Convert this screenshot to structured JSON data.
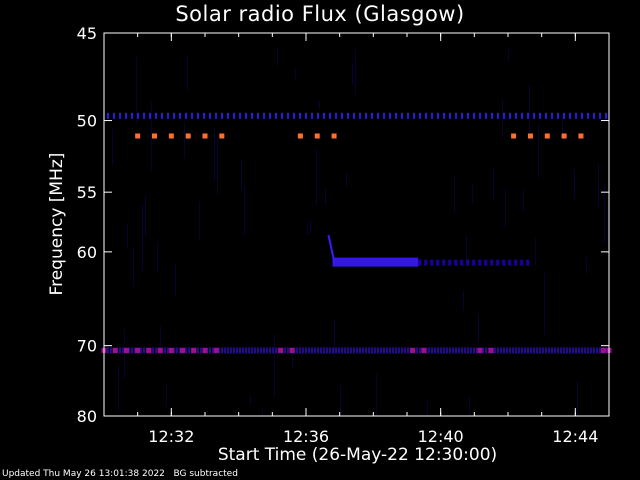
{
  "chart_data": {
    "type": "heatmap",
    "title": "Solar radio Flux (Glasgow)",
    "xlabel": "Start Time (26-May-22 12:30:00)",
    "ylabel": "Frequency [MHz]",
    "x_ticks": [
      "12:32",
      "12:36",
      "12:40",
      "12:44"
    ],
    "y_ticks": [
      45,
      50,
      55,
      60,
      70,
      80
    ],
    "xlim": [
      "12:30:00",
      "12:45:00"
    ],
    "ylim": [
      80,
      45
    ],
    "y_scale": "reciprocal",
    "colormap": [
      "#000000",
      "#1a00a0",
      "#3a1aff",
      "#a0108a",
      "#ff3030",
      "#ff7030"
    ],
    "persistent_bands_mhz": [
      49.7,
      70.6
    ],
    "intermittent_bursts": [
      {
        "freq_mhz": 51.0,
        "start": "12:31:00",
        "end": "12:33:30",
        "spacing_s": 30,
        "level": "high"
      },
      {
        "freq_mhz": 51.0,
        "start": "12:35:50",
        "end": "12:36:50",
        "spacing_s": 30,
        "level": "high"
      },
      {
        "freq_mhz": 51.0,
        "start": "12:42:10",
        "end": "12:44:10",
        "spacing_s": 30,
        "level": "high"
      },
      {
        "freq_mhz": 70.6,
        "start": "12:30:00",
        "end": "12:33:20",
        "spacing_s": 20,
        "level": "medium"
      },
      {
        "freq_mhz": 70.6,
        "start": "12:35:15",
        "end": "12:35:35",
        "spacing_s": 20,
        "level": "medium"
      },
      {
        "freq_mhz": 70.6,
        "start": "12:39:10",
        "end": "12:39:30",
        "spacing_s": 20,
        "level": "medium"
      },
      {
        "freq_mhz": 70.6,
        "start": "12:41:10",
        "end": "12:41:30",
        "spacing_s": 20,
        "level": "medium"
      },
      {
        "freq_mhz": 70.6,
        "start": "12:44:50",
        "end": "12:45:00",
        "spacing_s": 10,
        "level": "medium"
      }
    ],
    "drifting_feature": {
      "start": "12:36:40",
      "end": "12:39:20",
      "freq_start_mhz": 58.5,
      "freq_mhz": 61.0,
      "level": "low"
    },
    "grid": false,
    "legend": "none"
  },
  "footer": {
    "updated": "Updated Thu May 26 13:01:38 2022",
    "note": "BG subtracted"
  }
}
